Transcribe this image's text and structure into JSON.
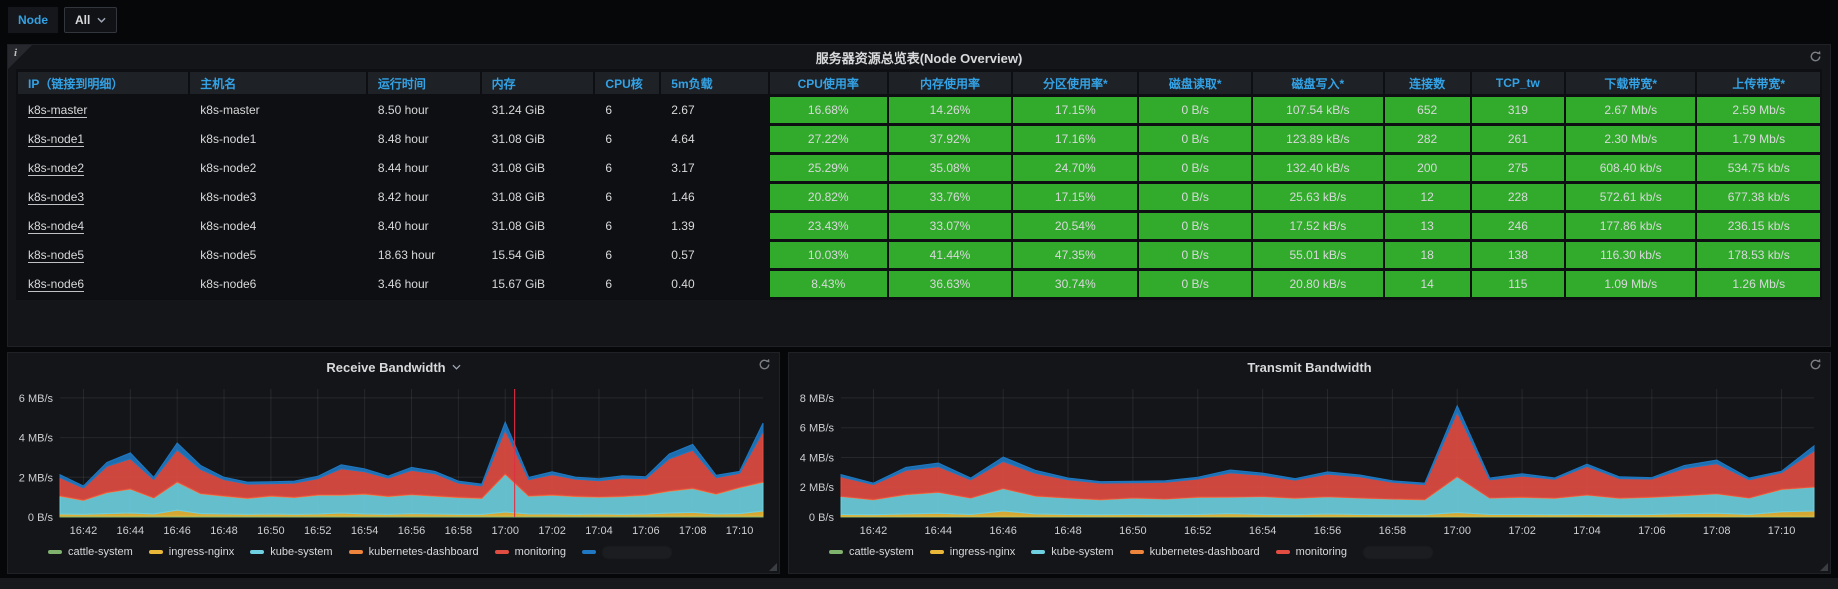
{
  "toolbar": {
    "variable_label": "Node",
    "variable_value": "All"
  },
  "table_panel": {
    "title": "服务器资源总览表(Node Overview)",
    "info_icon": "i",
    "columns": [
      "IP（链接到明细）",
      "主机名",
      "运行时间",
      "内存",
      "CPU核",
      "5m负载",
      "CPU使用率",
      "内存使用率",
      "分区使用率*",
      "磁盘读取*",
      "磁盘写入*",
      "连接数",
      "TCP_tw",
      "下载带宽*",
      "上传带宽*"
    ],
    "col_widths_pct": [
      9.6,
      9.9,
      6.3,
      6.3,
      3.6,
      6.0,
      6.6,
      6.9,
      7.0,
      6.3,
      7.3,
      4.8,
      5.2,
      7.3,
      6.9
    ],
    "green_cell_color": "#32ab2d",
    "header_color": "#33a2e5",
    "rows": [
      [
        "k8s-master",
        "k8s-master",
        "8.50 hour",
        "31.24 GiB",
        "6",
        "2.67",
        "16.68%",
        "14.26%",
        "17.15%",
        "0 B/s",
        "107.54 kB/s",
        "652",
        "319",
        "2.67 Mb/s",
        "2.59 Mb/s"
      ],
      [
        "k8s-node1",
        "k8s-node1",
        "8.48 hour",
        "31.08 GiB",
        "6",
        "4.64",
        "27.22%",
        "37.92%",
        "17.16%",
        "0 B/s",
        "123.89 kB/s",
        "282",
        "261",
        "2.30 Mb/s",
        "1.79 Mb/s"
      ],
      [
        "k8s-node2",
        "k8s-node2",
        "8.44 hour",
        "31.08 GiB",
        "6",
        "3.17",
        "25.29%",
        "35.08%",
        "24.70%",
        "0 B/s",
        "132.40 kB/s",
        "200",
        "275",
        "608.40 kb/s",
        "534.75 kb/s"
      ],
      [
        "k8s-node3",
        "k8s-node3",
        "8.42 hour",
        "31.08 GiB",
        "6",
        "1.46",
        "20.82%",
        "33.76%",
        "17.15%",
        "0 B/s",
        "25.63 kB/s",
        "12",
        "228",
        "572.61 kb/s",
        "677.38 kb/s"
      ],
      [
        "k8s-node4",
        "k8s-node4",
        "8.40 hour",
        "31.08 GiB",
        "6",
        "1.39",
        "23.43%",
        "33.07%",
        "20.54%",
        "0 B/s",
        "17.52 kB/s",
        "13",
        "246",
        "177.86 kb/s",
        "236.15 kb/s"
      ],
      [
        "k8s-node5",
        "k8s-node5",
        "18.63 hour",
        "15.54 GiB",
        "6",
        "0.57",
        "10.03%",
        "41.44%",
        "47.35%",
        "0 B/s",
        "55.01 kB/s",
        "18",
        "138",
        "116.30 kb/s",
        "178.53 kb/s"
      ],
      [
        "k8s-node6",
        "k8s-node6",
        "3.46 hour",
        "15.67 GiB",
        "6",
        "0.40",
        "8.43%",
        "36.63%",
        "30.74%",
        "0 B/s",
        "20.80 kB/s",
        "14",
        "115",
        "1.09 Mb/s",
        "1.26 Mb/s"
      ]
    ]
  },
  "chart_data": [
    {
      "type": "area",
      "stacked": true,
      "title": "Receive Bandwidth",
      "has_menu_caret": true,
      "legend_position": "bottom",
      "grid": true,
      "ylim": [
        0,
        6.45
      ],
      "yticks": [
        0,
        2,
        4,
        6
      ],
      "ytick_labels": [
        "0 B/s",
        "2 MB/s",
        "4 MB/s",
        "6 MB/s"
      ],
      "xticks": [
        "16:42",
        "16:44",
        "16:46",
        "16:48",
        "16:50",
        "16:52",
        "16:54",
        "16:56",
        "16:58",
        "17:00",
        "17:02",
        "17:04",
        "17:06",
        "17:08",
        "17:10"
      ],
      "x_times": [
        "16:41",
        "16:42",
        "16:43",
        "16:44",
        "16:45",
        "16:46",
        "16:47",
        "16:48",
        "16:49",
        "16:50",
        "16:51",
        "16:52",
        "16:53",
        "16:54",
        "16:55",
        "16:56",
        "16:57",
        "16:58",
        "16:59",
        "17:00",
        "17:01",
        "17:02",
        "17:03",
        "17:04",
        "17:05",
        "17:06",
        "17:07",
        "17:08",
        "17:09",
        "17:10",
        "17:11"
      ],
      "crosshair_time": "17:00",
      "crosshair_color": "#e02f44",
      "series": [
        {
          "name": "cattle-system",
          "color": "#7EB26D",
          "values": [
            0.05,
            0.05,
            0.05,
            0.05,
            0.05,
            0.05,
            0.05,
            0.05,
            0.05,
            0.05,
            0.05,
            0.05,
            0.05,
            0.05,
            0.05,
            0.05,
            0.05,
            0.05,
            0.05,
            0.05,
            0.05,
            0.05,
            0.05,
            0.05,
            0.05,
            0.05,
            0.05,
            0.05,
            0.05,
            0.05,
            0.05
          ]
        },
        {
          "name": "ingress-nginx",
          "color": "#EAB839",
          "values": [
            0.1,
            0.08,
            0.12,
            0.15,
            0.1,
            0.3,
            0.12,
            0.1,
            0.08,
            0.1,
            0.08,
            0.1,
            0.15,
            0.1,
            0.08,
            0.12,
            0.1,
            0.08,
            0.08,
            0.2,
            0.1,
            0.1,
            0.08,
            0.1,
            0.08,
            0.1,
            0.15,
            0.18,
            0.1,
            0.12,
            0.25
          ]
        },
        {
          "name": "kube-system",
          "color": "#6ED0E0",
          "values": [
            0.9,
            0.7,
            1.05,
            1.2,
            0.8,
            1.4,
            1.0,
            0.9,
            0.8,
            0.9,
            0.85,
            0.95,
            0.9,
            1.0,
            0.9,
            0.95,
            0.9,
            0.85,
            0.8,
            1.9,
            0.9,
            0.95,
            0.9,
            0.85,
            0.9,
            0.95,
            1.1,
            1.2,
            1.0,
            1.3,
            1.45
          ]
        },
        {
          "name": "kubernetes-dashboard",
          "color": "#EF843C",
          "values": [
            0.03,
            0.03,
            0.03,
            0.03,
            0.03,
            0.03,
            0.03,
            0.03,
            0.03,
            0.03,
            0.03,
            0.03,
            0.03,
            0.03,
            0.03,
            0.03,
            0.03,
            0.03,
            0.03,
            0.03,
            0.03,
            0.03,
            0.03,
            0.03,
            0.03,
            0.03,
            0.03,
            0.03,
            0.03,
            0.03,
            0.03
          ]
        },
        {
          "name": "monitoring",
          "color": "#E24D42",
          "values": [
            0.9,
            0.6,
            1.3,
            1.5,
            0.9,
            1.6,
            1.2,
            0.8,
            0.7,
            0.6,
            0.7,
            0.8,
            1.3,
            1.1,
            0.9,
            1.2,
            1.1,
            0.7,
            0.6,
            2.2,
            0.8,
            1.0,
            0.85,
            0.8,
            0.9,
            0.8,
            1.6,
            1.9,
            0.8,
            0.7,
            2.5
          ]
        },
        {
          "name": "",
          "redacted": true,
          "color": "#1F78C1",
          "values": [
            0.15,
            0.1,
            0.2,
            0.3,
            0.12,
            0.35,
            0.2,
            0.12,
            0.1,
            0.1,
            0.1,
            0.12,
            0.2,
            0.15,
            0.1,
            0.15,
            0.12,
            0.1,
            0.1,
            0.4,
            0.12,
            0.15,
            0.1,
            0.1,
            0.12,
            0.1,
            0.25,
            0.3,
            0.12,
            0.1,
            0.45
          ]
        }
      ]
    },
    {
      "type": "area",
      "stacked": true,
      "title": "Transmit Bandwidth",
      "has_menu_caret": false,
      "legend_position": "bottom",
      "grid": true,
      "ylim": [
        0,
        8.6
      ],
      "yticks": [
        0,
        2,
        4,
        6,
        8
      ],
      "ytick_labels": [
        "0 B/s",
        "2 MB/s",
        "4 MB/s",
        "6 MB/s",
        "8 MB/s"
      ],
      "xticks": [
        "16:42",
        "16:44",
        "16:46",
        "16:48",
        "16:50",
        "16:52",
        "16:54",
        "16:56",
        "16:58",
        "17:00",
        "17:02",
        "17:04",
        "17:06",
        "17:08",
        "17:10"
      ],
      "x_times": [
        "16:41",
        "16:42",
        "16:43",
        "16:44",
        "16:45",
        "16:46",
        "16:47",
        "16:48",
        "16:49",
        "16:50",
        "16:51",
        "16:52",
        "16:53",
        "16:54",
        "16:55",
        "16:56",
        "16:57",
        "16:58",
        "16:59",
        "17:00",
        "17:01",
        "17:02",
        "17:03",
        "17:04",
        "17:05",
        "17:06",
        "17:07",
        "17:08",
        "17:09",
        "17:10",
        "17:11"
      ],
      "crosshair_time": null,
      "series": [
        {
          "name": "cattle-system",
          "color": "#7EB26D",
          "values": [
            0.05,
            0.05,
            0.05,
            0.05,
            0.05,
            0.05,
            0.05,
            0.05,
            0.05,
            0.05,
            0.05,
            0.05,
            0.05,
            0.05,
            0.05,
            0.05,
            0.05,
            0.05,
            0.05,
            0.05,
            0.05,
            0.05,
            0.05,
            0.05,
            0.05,
            0.05,
            0.05,
            0.05,
            0.05,
            0.05,
            0.05
          ]
        },
        {
          "name": "ingress-nginx",
          "color": "#EAB839",
          "values": [
            0.12,
            0.1,
            0.15,
            0.2,
            0.12,
            0.35,
            0.15,
            0.12,
            0.1,
            0.12,
            0.1,
            0.12,
            0.18,
            0.12,
            0.1,
            0.15,
            0.12,
            0.1,
            0.1,
            0.25,
            0.12,
            0.12,
            0.1,
            0.12,
            0.1,
            0.12,
            0.18,
            0.2,
            0.12,
            0.3,
            0.35
          ]
        },
        {
          "name": "kube-system",
          "color": "#6ED0E0",
          "values": [
            1.2,
            1.0,
            1.3,
            1.4,
            1.1,
            1.5,
            1.2,
            1.1,
            1.0,
            1.1,
            1.05,
            1.15,
            1.1,
            1.2,
            1.1,
            1.15,
            1.1,
            1.05,
            1.0,
            2.4,
            1.1,
            1.15,
            1.1,
            1.3,
            1.1,
            1.15,
            1.2,
            1.3,
            1.1,
            1.5,
            1.6
          ]
        },
        {
          "name": "kubernetes-dashboard",
          "color": "#EF843C",
          "values": [
            0.03,
            0.03,
            0.03,
            0.03,
            0.03,
            0.03,
            0.03,
            0.03,
            0.03,
            0.03,
            0.03,
            0.03,
            0.03,
            0.03,
            0.03,
            0.03,
            0.03,
            0.03,
            0.03,
            0.03,
            0.03,
            0.03,
            0.03,
            0.03,
            0.03,
            0.03,
            0.03,
            0.03,
            0.03,
            0.03,
            0.03
          ]
        },
        {
          "name": "monitoring",
          "color": "#E24D42",
          "values": [
            1.3,
            1.0,
            1.6,
            1.7,
            1.2,
            1.8,
            1.5,
            1.2,
            1.1,
            1.0,
            1.1,
            1.2,
            1.6,
            1.4,
            1.2,
            1.5,
            1.4,
            1.1,
            1.0,
            4.3,
            1.2,
            1.4,
            1.25,
            1.9,
            1.3,
            1.2,
            1.8,
            2.0,
            1.2,
            1.1,
            2.4
          ]
        },
        {
          "name": "",
          "redacted": true,
          "hide_legend_dash": true,
          "color": "#1F78C1",
          "values": [
            0.15,
            0.1,
            0.2,
            0.25,
            0.12,
            0.3,
            0.2,
            0.12,
            0.1,
            0.1,
            0.1,
            0.12,
            0.2,
            0.15,
            0.1,
            0.15,
            0.12,
            0.1,
            0.1,
            0.45,
            0.12,
            0.15,
            0.1,
            0.15,
            0.12,
            0.1,
            0.2,
            0.25,
            0.12,
            0.1,
            0.35
          ]
        }
      ]
    }
  ]
}
